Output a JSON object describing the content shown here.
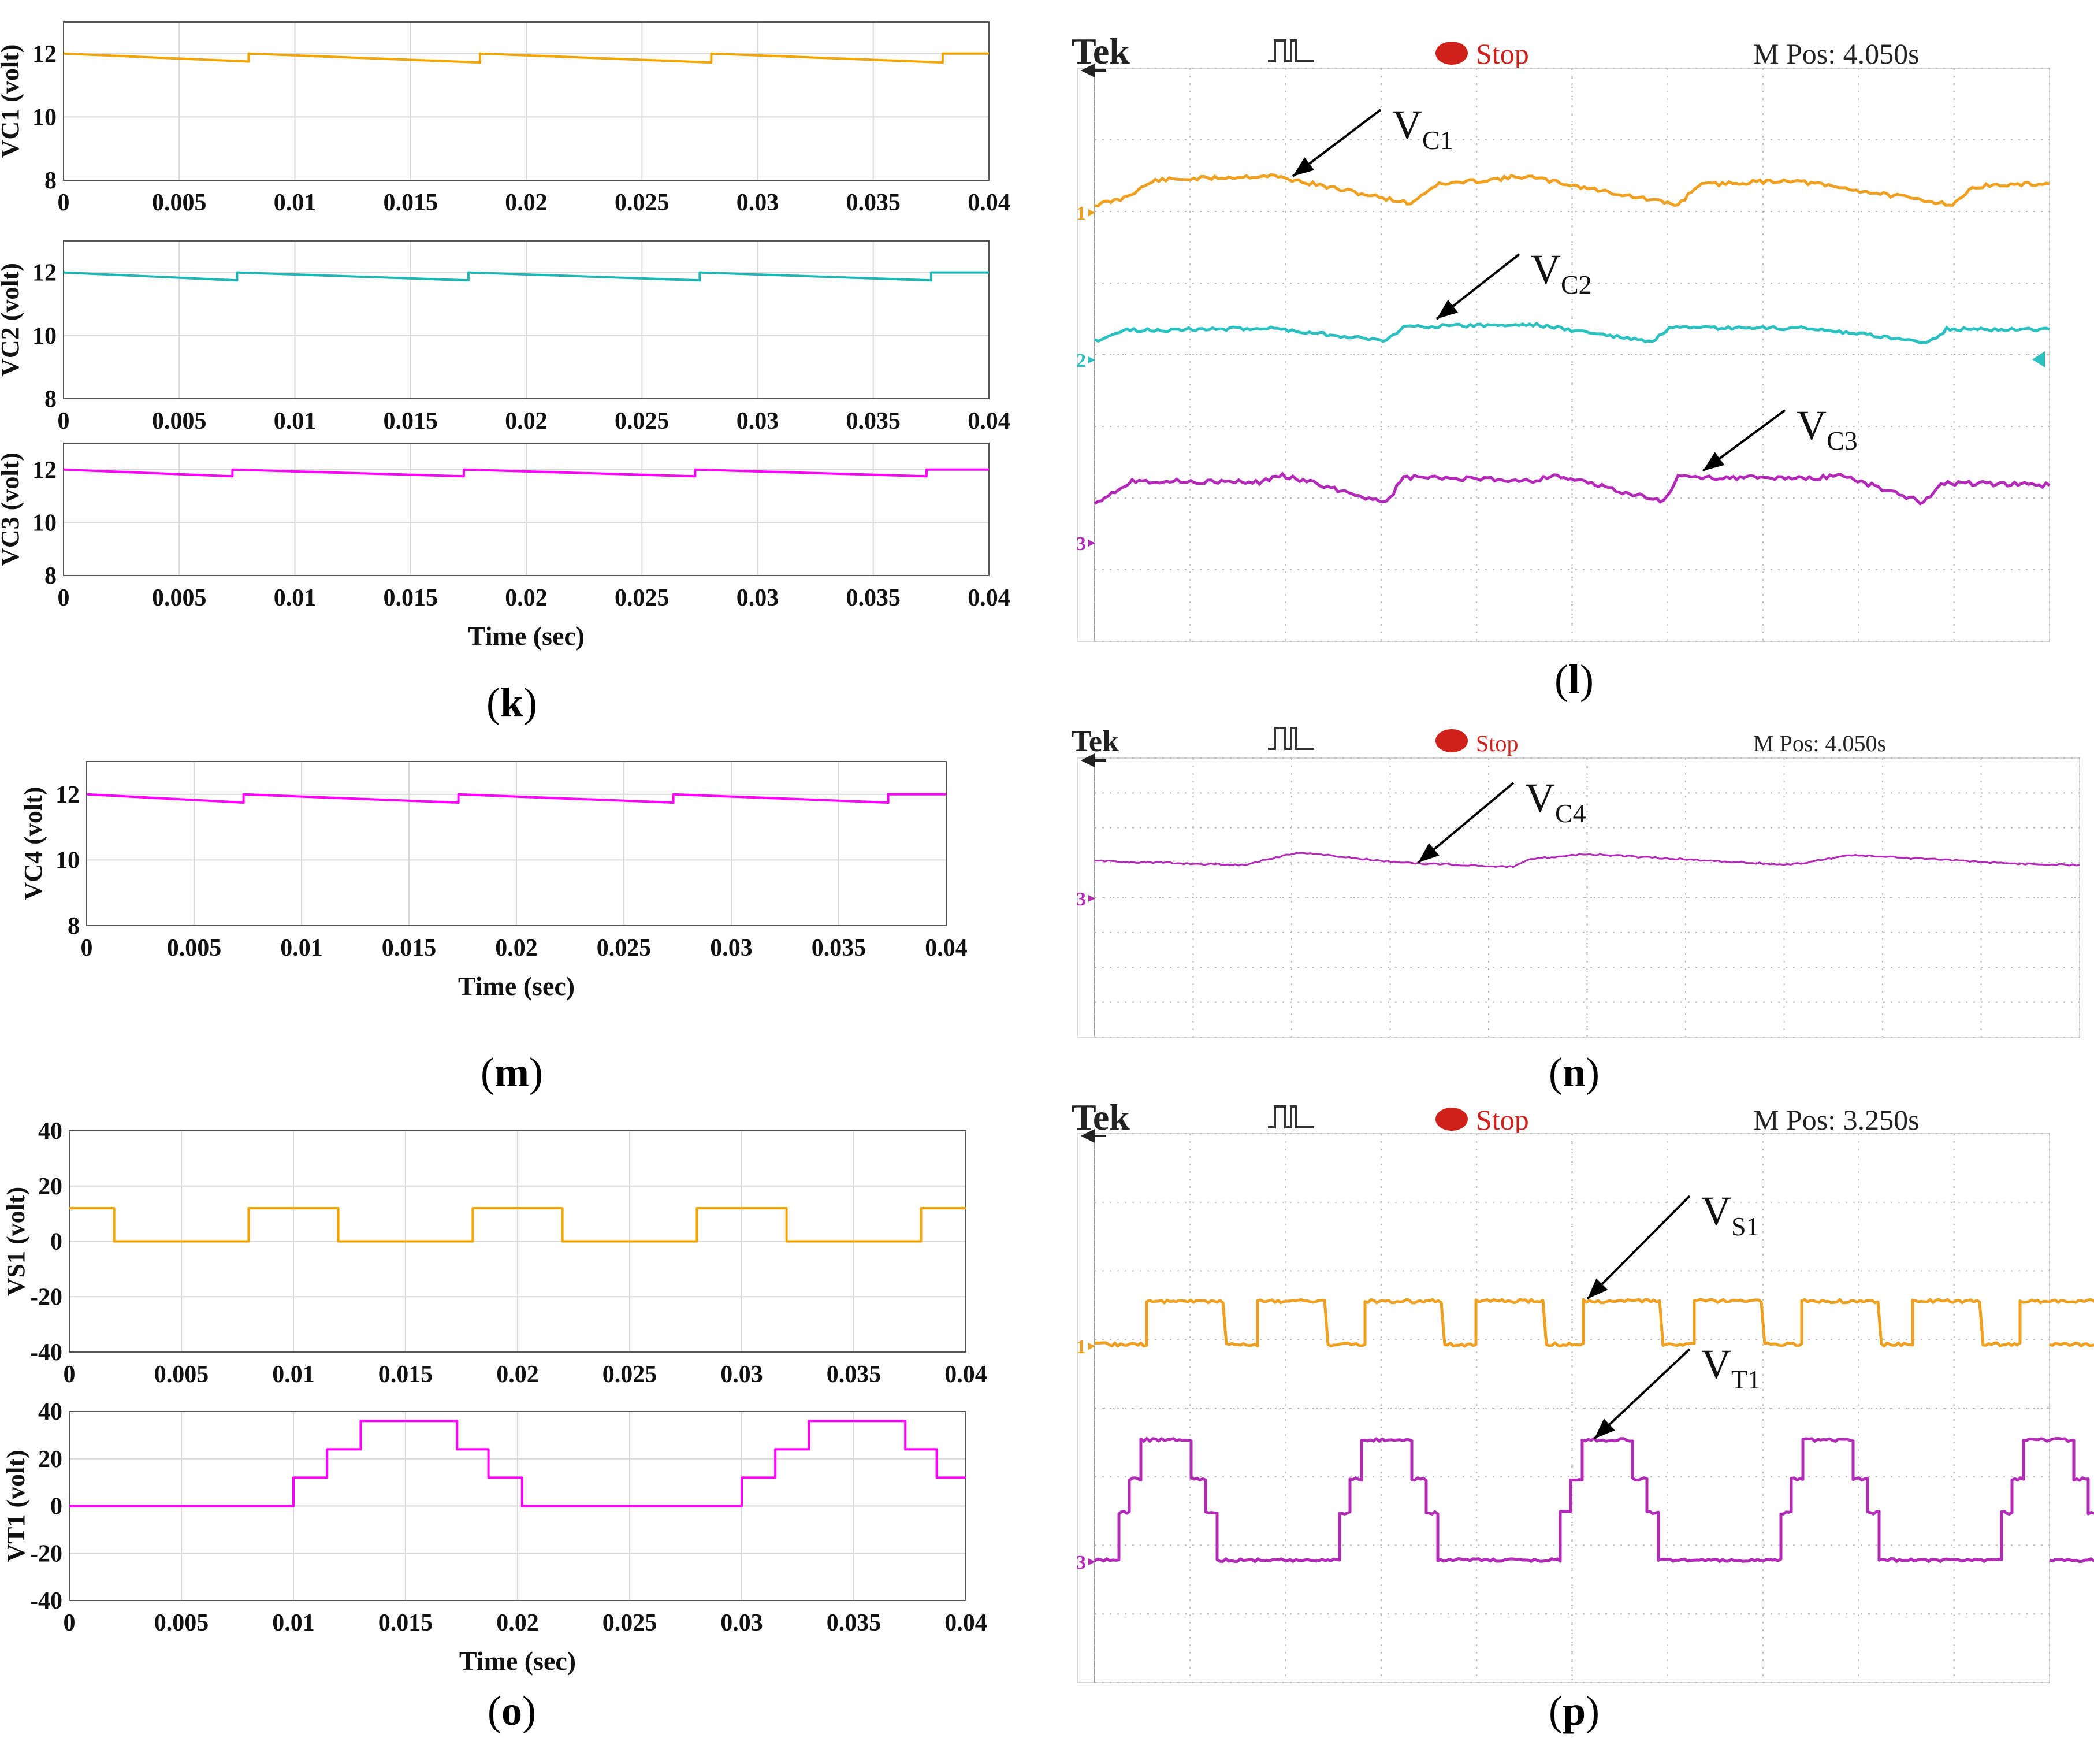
{
  "colors": {
    "orange": "#F2A400",
    "cyan": "#1FB5B5",
    "magenta": "#FF00FF",
    "scope_magenta": "#B42AB8",
    "scope_orange": "#F0A020",
    "scope_cyan": "#2CC0C0",
    "grid": "#d8d8d8",
    "scope_grid": "#bdbdbd",
    "stop_red": "#d0201a"
  },
  "chart_data": [
    {
      "id": "k",
      "label_letter": "k",
      "type": "line",
      "subplots": [
        {
          "ylabel": "VC1 (volt)",
          "ylim": [
            8,
            13
          ],
          "yticks": [
            "8",
            "10",
            "12"
          ],
          "color": "orange",
          "x": [
            0,
            0.008,
            0.008,
            0.018,
            0.018,
            0.028,
            0.028,
            0.038,
            0.038,
            0.04
          ],
          "y": [
            12.0,
            11.75,
            12.0,
            11.72,
            12.0,
            11.72,
            12.0,
            11.72,
            12.0,
            12.0
          ]
        },
        {
          "ylabel": "VC2 (volt)",
          "ylim": [
            8,
            13
          ],
          "yticks": [
            "8",
            "10",
            "12"
          ],
          "color": "cyan",
          "x": [
            0,
            0.0075,
            0.0075,
            0.0175,
            0.0175,
            0.0275,
            0.0275,
            0.0375,
            0.0375,
            0.04
          ],
          "y": [
            12.0,
            11.75,
            12.0,
            11.75,
            12.0,
            11.75,
            12.0,
            11.75,
            12.0,
            12.0
          ]
        },
        {
          "ylabel": "VC3 (volt)",
          "ylim": [
            8,
            13
          ],
          "yticks": [
            "8",
            "10",
            "12"
          ],
          "color": "magenta",
          "x": [
            0,
            0.0073,
            0.0073,
            0.0173,
            0.0173,
            0.0273,
            0.0273,
            0.0373,
            0.0373,
            0.04
          ],
          "y": [
            12.0,
            11.75,
            12.0,
            11.75,
            12.0,
            11.75,
            12.0,
            11.75,
            12.0,
            12.0
          ]
        }
      ],
      "xlim": [
        0,
        0.04
      ],
      "xticks": [
        "0",
        "0.005",
        "0.01",
        "0.015",
        "0.02",
        "0.025",
        "0.03",
        "0.035",
        "0.04"
      ],
      "xlabel": "Time (sec)"
    },
    {
      "id": "l",
      "label_letter": "l",
      "type": "line",
      "source": "oscilloscope",
      "header": {
        "brand": "Tek",
        "status": "Stop",
        "mpos": "M Pos: 4.050s"
      },
      "channel_markers": [
        "1",
        "2",
        "3"
      ],
      "annotations": [
        {
          "main": "V",
          "sub": "C1"
        },
        {
          "main": "V",
          "sub": "C2"
        },
        {
          "main": "V",
          "sub": "C3"
        }
      ]
    },
    {
      "id": "m",
      "label_letter": "m",
      "type": "line",
      "subplots": [
        {
          "ylabel": "VC4 (volt)",
          "ylim": [
            8,
            13
          ],
          "yticks": [
            "8",
            "10",
            "12"
          ],
          "color": "magenta",
          "x": [
            0,
            0.0073,
            0.0073,
            0.0173,
            0.0173,
            0.0273,
            0.0273,
            0.0373,
            0.0373,
            0.04
          ],
          "y": [
            12.0,
            11.75,
            12.0,
            11.75,
            12.0,
            11.75,
            12.0,
            11.75,
            12.0,
            12.0
          ]
        }
      ],
      "xlim": [
        0,
        0.04
      ],
      "xticks": [
        "0",
        "0.005",
        "0.01",
        "0.015",
        "0.02",
        "0.025",
        "0.03",
        "0.035",
        "0.04"
      ],
      "xlabel": "Time (sec)"
    },
    {
      "id": "n",
      "label_letter": "n",
      "type": "line",
      "source": "oscilloscope",
      "header": {
        "brand": "Tek",
        "status": "Stop",
        "mpos": "M Pos: 4.050s"
      },
      "channel_markers": [
        "3"
      ],
      "annotations": [
        {
          "main": "V",
          "sub": "C4"
        }
      ]
    },
    {
      "id": "o",
      "label_letter": "o",
      "type": "line",
      "subplots": [
        {
          "ylabel": "VS1 (volt)",
          "ylim": [
            -40,
            40
          ],
          "yticks": [
            "-40",
            "-20",
            "0",
            "20",
            "40"
          ],
          "color": "orange",
          "x": [
            0,
            0.002,
            0.002,
            0.008,
            0.008,
            0.012,
            0.012,
            0.018,
            0.018,
            0.022,
            0.022,
            0.028,
            0.028,
            0.032,
            0.032,
            0.038,
            0.038,
            0.04
          ],
          "y": [
            12,
            12,
            0,
            0,
            12,
            12,
            0,
            0,
            12,
            12,
            0,
            0,
            12,
            12,
            0,
            0,
            12,
            12
          ]
        },
        {
          "ylabel": "VT1 (volt)",
          "ylim": [
            -40,
            40
          ],
          "yticks": [
            "-40",
            "-20",
            "0",
            "20",
            "40"
          ],
          "color": "magenta",
          "x": [
            0,
            0.01,
            0.01,
            0.0115,
            0.0115,
            0.013,
            0.013,
            0.0173,
            0.0173,
            0.0187,
            0.0187,
            0.0202,
            0.0202,
            0.03,
            0.03,
            0.0315,
            0.0315,
            0.033,
            0.033,
            0.0373,
            0.0373,
            0.0387,
            0.0387,
            0.04
          ],
          "y": [
            0,
            0,
            12,
            12,
            24,
            24,
            36,
            36,
            24,
            24,
            12,
            12,
            0,
            0,
            12,
            12,
            24,
            24,
            36,
            36,
            24,
            24,
            12,
            12
          ]
        }
      ],
      "xlim": [
        0,
        0.04
      ],
      "xticks": [
        "0",
        "0.005",
        "0.01",
        "0.015",
        "0.02",
        "0.025",
        "0.03",
        "0.035",
        "0.04"
      ],
      "xlabel": "Time (sec)"
    },
    {
      "id": "p",
      "label_letter": "p",
      "type": "line",
      "source": "oscilloscope",
      "header": {
        "brand": "Tek",
        "status": "Stop",
        "mpos": "M Pos: 3.250s"
      },
      "channel_markers": [
        "1",
        "3"
      ],
      "annotations": [
        {
          "main": "V",
          "sub": "S1"
        },
        {
          "main": "V",
          "sub": "T1"
        }
      ]
    }
  ]
}
